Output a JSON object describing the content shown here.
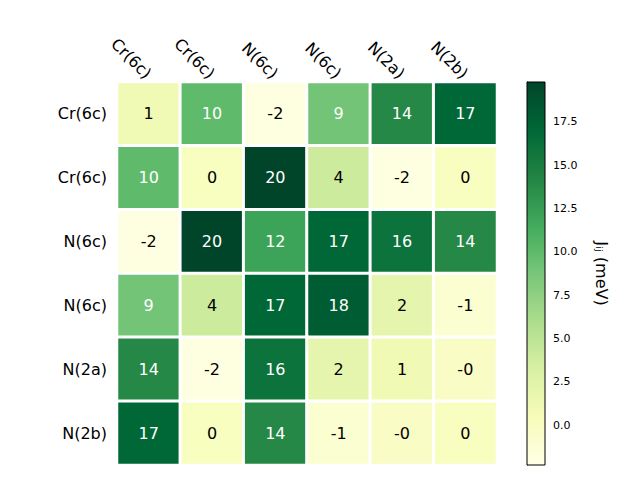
{
  "chart_data": {
    "type": "heatmap",
    "x_categories": [
      "Cr(6c)",
      "Cr(6c)",
      "N(6c)",
      "N(6c)",
      "N(2a)",
      "N(2b)"
    ],
    "y_categories": [
      "Cr(6c)",
      "Cr(6c)",
      "N(6c)",
      "N(6c)",
      "N(2a)",
      "N(2b)"
    ],
    "values": [
      [
        1,
        10,
        -2,
        9,
        14,
        17
      ],
      [
        10,
        0,
        20,
        4,
        -2,
        0
      ],
      [
        -2,
        20,
        12,
        17,
        16,
        14
      ],
      [
        9,
        4,
        17,
        18,
        2,
        -1
      ],
      [
        14,
        -2,
        16,
        2,
        1,
        -0.3
      ],
      [
        17,
        0,
        14,
        -1,
        -0.3,
        0
      ]
    ],
    "value_labels": [
      [
        "1",
        "10",
        "-2",
        "9",
        "14",
        "17"
      ],
      [
        "10",
        "0",
        "20",
        "4",
        "-2",
        "0"
      ],
      [
        "-2",
        "20",
        "12",
        "17",
        "16",
        "14"
      ],
      [
        "9",
        "4",
        "17",
        "18",
        "2",
        "-1"
      ],
      [
        "14",
        "-2",
        "16",
        "2",
        "1",
        "-0"
      ],
      [
        "17",
        "0",
        "14",
        "-1",
        "-0",
        "0"
      ]
    ],
    "data_labels": true,
    "colorbar": {
      "label": "Jᵢⱼ (meV)",
      "range": [
        -2.3,
        19.8
      ],
      "ticks": [
        {
          "value": 0,
          "label": "0.0"
        },
        {
          "value": 2.5,
          "label": "2.5"
        },
        {
          "value": 5,
          "label": "5.0"
        },
        {
          "value": 7.5,
          "label": "7.5"
        },
        {
          "value": 10,
          "label": "10.0"
        },
        {
          "value": 12.5,
          "label": "12.5"
        },
        {
          "value": 15,
          "label": "15.0"
        },
        {
          "value": 17.5,
          "label": "17.5"
        }
      ]
    }
  }
}
